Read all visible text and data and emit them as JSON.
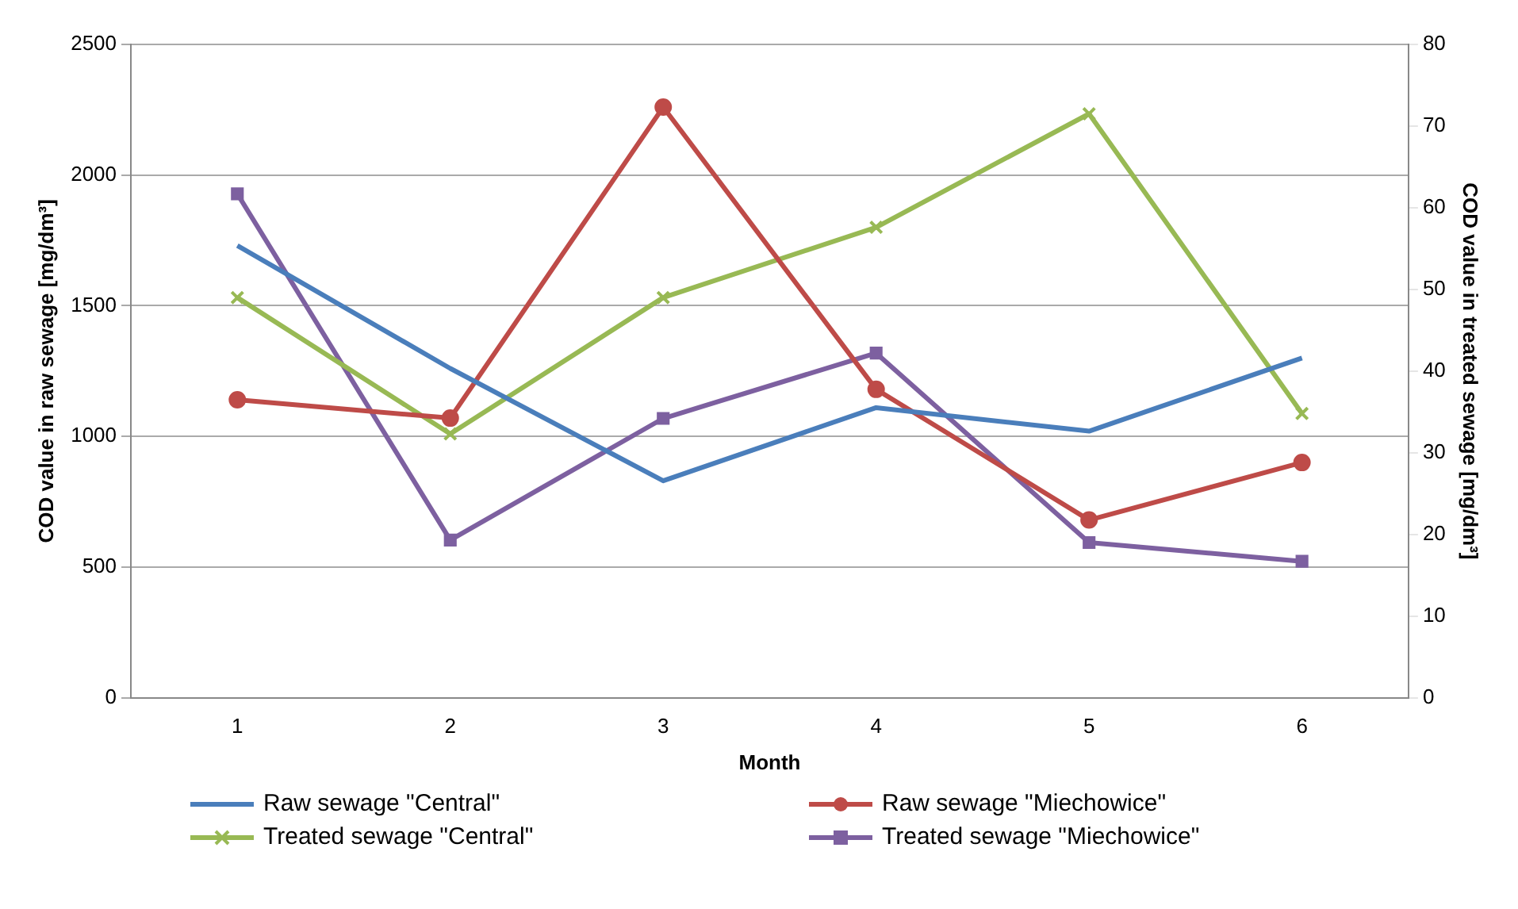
{
  "chart_data": {
    "type": "line",
    "xlabel": "Month",
    "ylabel": "COD value in raw sewage [mg/dm³]",
    "y2label": "COD value in treated sewage [mg/dm³]",
    "categories": [
      "1",
      "2",
      "3",
      "4",
      "5",
      "6"
    ],
    "series": [
      {
        "name": "Raw sewage \"Central\"",
        "color": "#4a7ebb",
        "marker": "none",
        "values": [
          1730,
          1260,
          830,
          1110,
          1020,
          1300
        ]
      },
      {
        "name": "Raw sewage \"Miechowice\"",
        "color": "#be4b48",
        "marker": "circle",
        "values": [
          1140,
          1070,
          2260,
          1180,
          680,
          900
        ]
      },
      {
        "name": "Treated sewage \"Central\"",
        "color": "#98b954",
        "marker": "cross",
        "axis": "y2",
        "values": [
          49,
          32.3,
          49,
          57.6,
          71.5,
          34.8
        ]
      },
      {
        "name": "Treated sewage \"Miechowice\"",
        "color": "#7d60a0",
        "marker": "square",
        "axis": "y2",
        "values": [
          61.7,
          19.3,
          34.2,
          42.2,
          19,
          16.7
        ]
      }
    ],
    "ylim": [
      0,
      2500
    ],
    "yticks": [
      0,
      500,
      1000,
      1500,
      2000,
      2500
    ],
    "y2lim": [
      0,
      80
    ],
    "y2ticks": [
      0,
      10,
      20,
      30,
      40,
      50,
      60,
      70,
      80
    ],
    "grid": "y",
    "legend": "bottom"
  }
}
